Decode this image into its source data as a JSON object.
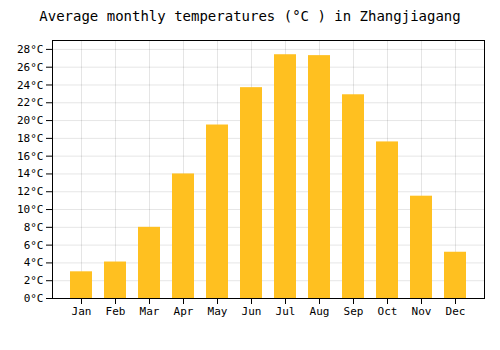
{
  "chart_data": {
    "type": "bar",
    "title": "Average monthly temperatures (°C ) in Zhangjiagang",
    "categories": [
      "Jan",
      "Feb",
      "Mar",
      "Apr",
      "May",
      "Jun",
      "Jul",
      "Aug",
      "Sep",
      "Oct",
      "Nov",
      "Dec"
    ],
    "values": [
      3.0,
      4.1,
      8.0,
      14.0,
      19.5,
      23.7,
      27.4,
      27.3,
      22.9,
      17.6,
      11.5,
      5.2
    ],
    "color": "#FFC020",
    "ylim": [
      0,
      29
    ],
    "yticks": [
      {
        "value": 0,
        "label": "0°C"
      },
      {
        "value": 2,
        "label": "2°C"
      },
      {
        "value": 4,
        "label": "4°C"
      },
      {
        "value": 6,
        "label": "6°C"
      },
      {
        "value": 8,
        "label": "8°C"
      },
      {
        "value": 10,
        "label": "10°C"
      },
      {
        "value": 12,
        "label": "12°C"
      },
      {
        "value": 14,
        "label": "14°C"
      },
      {
        "value": 16,
        "label": "16°C"
      },
      {
        "value": 18,
        "label": "18°C"
      },
      {
        "value": 20,
        "label": "20°C"
      },
      {
        "value": 22,
        "label": "22°C"
      },
      {
        "value": 24,
        "label": "24°C"
      },
      {
        "value": 26,
        "label": "26°C"
      },
      {
        "value": 28,
        "label": "28°C"
      }
    ],
    "grid": true
  }
}
